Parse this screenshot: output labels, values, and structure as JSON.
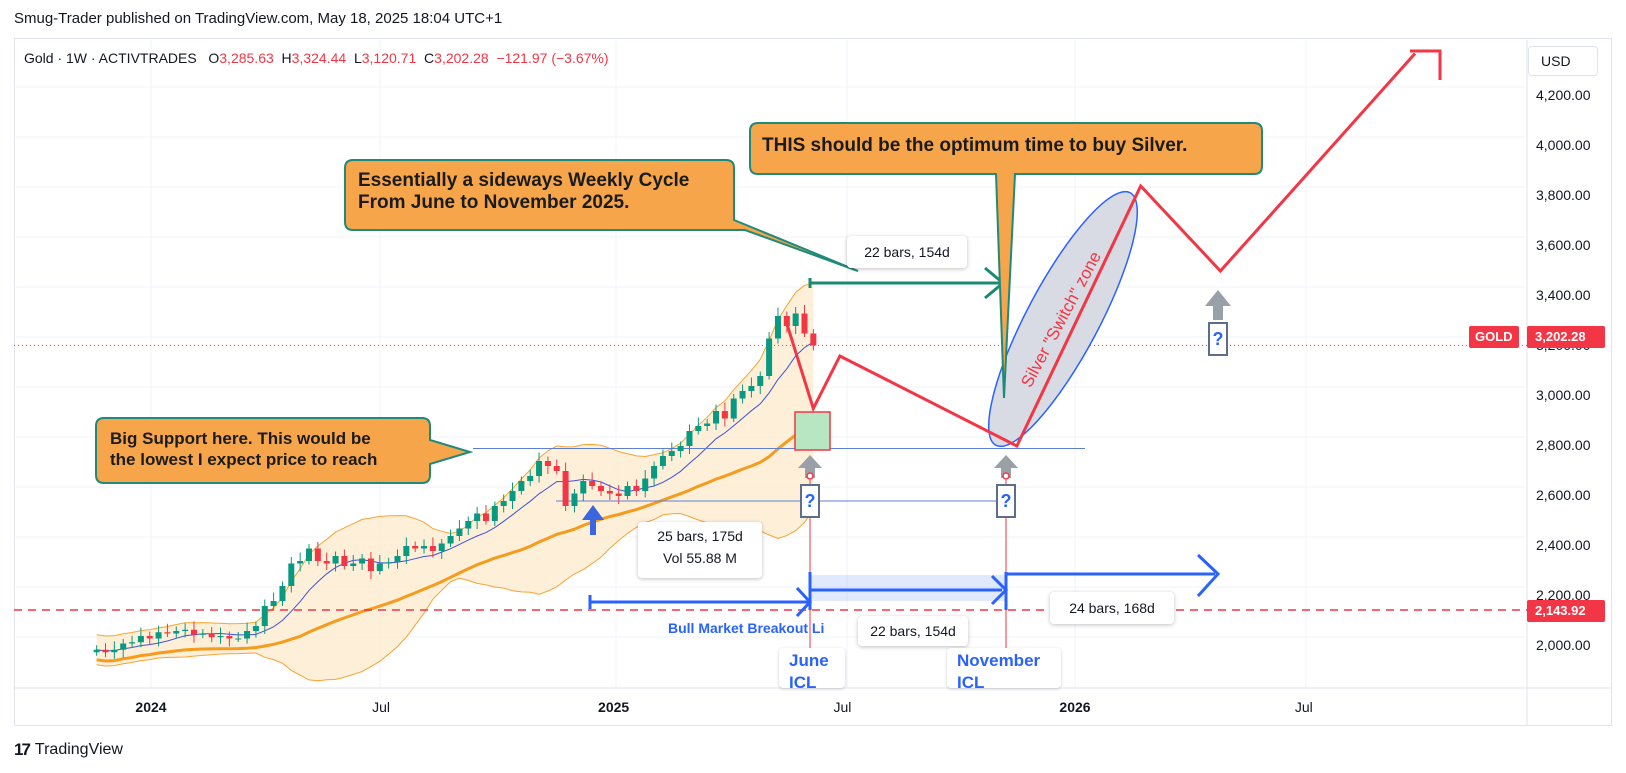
{
  "publisher": "Smug-Trader published on TradingView.com, May 18, 2025 18:04 UTC+1",
  "legend": {
    "symbol": "Gold · 1W · ACTIVTRADES",
    "o_label": "O",
    "o": "3,285.63",
    "h_label": "H",
    "h": "3,324.44",
    "l_label": "L",
    "l": "3,120.71",
    "c_label": "C",
    "c": "3,202.28",
    "change": "−121.97 (−3.67%)"
  },
  "currency": "USD",
  "price_tag": {
    "name": "GOLD",
    "value": "3,202.28"
  },
  "level_tag": {
    "value": "2,143.92"
  },
  "brand": "TradingView",
  "annotations": {
    "sideways": [
      "Essentially a sideways Weekly Cycle",
      "From June to November 2025."
    ],
    "optimum": "THIS should be the optimum time to buy Silver.",
    "support": [
      "Big Support here. This would be",
      "the lowest I expect price to reach"
    ],
    "switch_zone": "Silver \"Switch\" zone",
    "range_top": "22 bars, 154d",
    "range_mid": [
      "25 bars, 175d",
      "Vol 55.88 M"
    ],
    "range_low": "22 bars, 154d",
    "range_right": "24 bars, 168d",
    "breakout_line": "Bull Market Breakout Li",
    "june_icl": [
      "June",
      "ICL"
    ],
    "november_icl": [
      "November",
      "ICL"
    ],
    "question": "?"
  },
  "colors": {
    "up": "#089981",
    "down": "#f23645",
    "projection": "#f23645",
    "blue_arrow": "#2962ff",
    "teal_arrow": "#1c8a72",
    "callout_fill": "#f7a54a",
    "callout_border": "#1f8a7a",
    "bb_fill": "#fde9cc",
    "bb_line": "#f7a433",
    "ma_orange": "#f59b1e",
    "ma_blue": "#3f51d9"
  },
  "chart_data": {
    "type": "candlestick",
    "title": "Gold · 1W · ACTIVTRADES",
    "ylim": [
      1880,
      4370
    ],
    "y_ticks": [
      "2,000.00",
      "2,200.00",
      "2,400.00",
      "2,600.00",
      "2,800.00",
      "3,000.00",
      "3,200.00",
      "3,400.00",
      "3,600.00",
      "3,800.00",
      "4,000.00",
      "4,200.00"
    ],
    "x_ticks": [
      "2024",
      "Jul",
      "2025",
      "Jul",
      "2026",
      "Jul"
    ],
    "last_close": 3202.28,
    "support_level": 2790,
    "breakout_level": 2143.92,
    "lower_level": 2580,
    "weekly_closes": [
      1985,
      1975,
      1985,
      2010,
      2015,
      2040,
      2030,
      2055,
      2050,
      2060,
      2065,
      2045,
      2050,
      2035,
      2040,
      2030,
      2030,
      2060,
      2080,
      2160,
      2180,
      2240,
      2330,
      2340,
      2390,
      2340,
      2330,
      2360,
      2320,
      2330,
      2350,
      2300,
      2330,
      2335,
      2360,
      2400,
      2390,
      2400,
      2380,
      2410,
      2440,
      2470,
      2500,
      2530,
      2500,
      2560,
      2580,
      2620,
      2660,
      2680,
      2740,
      2720,
      2700,
      2560,
      2610,
      2660,
      2640,
      2620,
      2610,
      2600,
      2640,
      2620,
      2670,
      2720,
      2760,
      2780,
      2800,
      2860,
      2880,
      2890,
      2940,
      2910,
      2990,
      3020,
      3040,
      3080,
      3230,
      3320,
      3280,
      3330,
      3250,
      3202.28
    ],
    "projection_path": [
      {
        "date": "2025-05-18",
        "price": 3290
      },
      {
        "date": "2025-06-08",
        "price": 2950
      },
      {
        "date": "2025-06-29",
        "price": 3160
      },
      {
        "date": "2025-11-16",
        "price": 2800
      },
      {
        "date": "2026-02-22",
        "price": 3840
      },
      {
        "date": "2026-04-26",
        "price": 3500
      },
      {
        "date": "2026-09-27",
        "price": 4370
      }
    ]
  }
}
